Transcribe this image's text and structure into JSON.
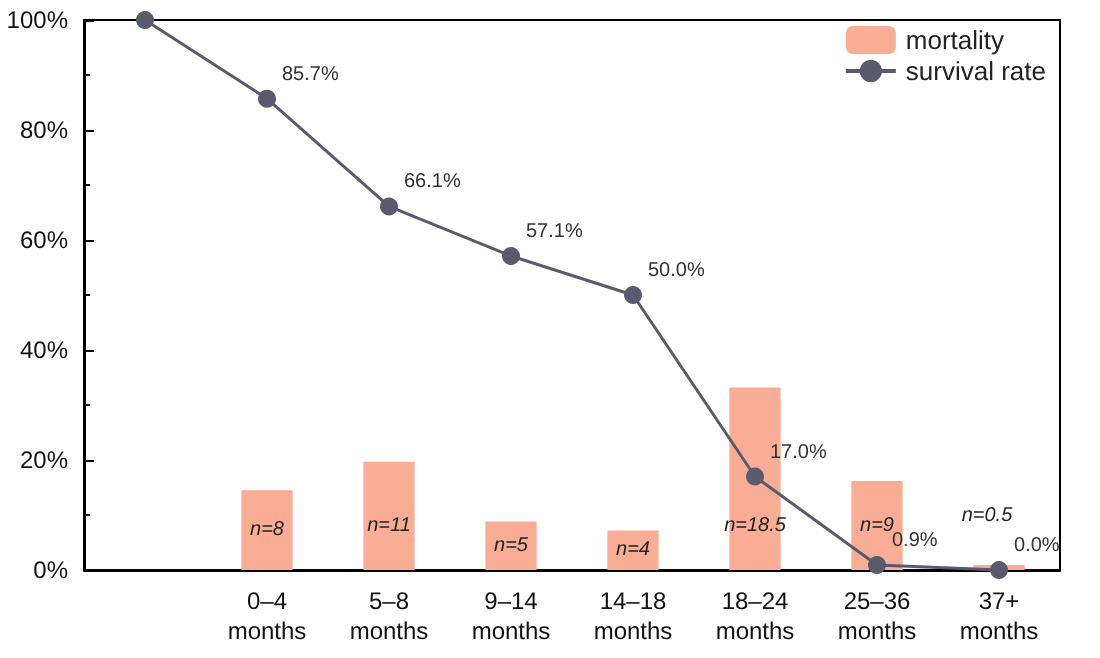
{
  "chart_data": {
    "type": "bar",
    "categories": [
      null,
      "0–4 months",
      "5–8 months",
      "9–14 months",
      "14–18 months",
      "18–24 months",
      "25–36 months",
      "37+ months"
    ],
    "series": [
      {
        "name": "mortality",
        "color": "#f9ad95",
        "values": [
          null,
          14.5,
          19.7,
          8.8,
          7.2,
          33.2,
          16.2,
          0.9
        ]
      },
      {
        "name": "survival rate",
        "type": "line",
        "color": "#5a5a6e",
        "marker": "circle",
        "values": [
          100,
          85.7,
          66.1,
          57.1,
          50.0,
          17.0,
          0.9,
          0.0
        ],
        "value_labels": [
          null,
          "85.7%",
          "66.1%",
          "57.1%",
          "50.0%",
          "17.0%",
          "0.9%",
          "0.0%"
        ]
      }
    ],
    "ylim": [
      0,
      100
    ],
    "yticks": [
      {
        "value": 0,
        "label": "0%"
      },
      {
        "value": 20,
        "label": "20%"
      },
      {
        "value": 40,
        "label": "40%"
      },
      {
        "value": 60,
        "label": "60%"
      },
      {
        "value": 80,
        "label": "80%"
      },
      {
        "value": 100,
        "label": "100%"
      }
    ],
    "annotations": [
      "n=8",
      "n=11",
      "n=5",
      "n=4",
      "n=18.5",
      "n=9",
      "n=0.5"
    ],
    "legend": "top right",
    "grid": false
  }
}
